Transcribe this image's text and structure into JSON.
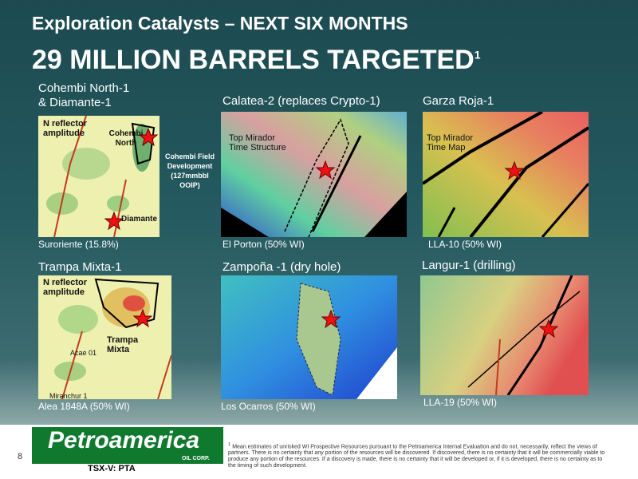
{
  "header": {
    "title": "Exploration Catalysts – NEXT SIX MONTHS",
    "headline": "29 MILLION BARRELS TARGETED",
    "headline_note": "1"
  },
  "panels": [
    {
      "title_lines": [
        "Cohembi North-1",
        "& Diamante-1"
      ],
      "footer": "Suroriente (15.8%)",
      "labels": [
        "N reflector amplitude",
        "Cohembi North",
        "Diamante"
      ],
      "side_note": "Cohembi Field Development (127mmbbl OOIP)"
    },
    {
      "title": "Calatea-2 (replaces Crypto-1)",
      "footer": "El Porton (50% WI)",
      "labels": [
        "Top Mirador Time Structure"
      ]
    },
    {
      "title": "Garza Roja-1",
      "footer": "LLA-10 (50% WI)",
      "labels": [
        "Top Mirador Time Map"
      ]
    },
    {
      "title": "Trampa Mixta-1",
      "footer": "Alea 1848A (50% WI)",
      "labels": [
        "N reflector amplitude",
        "Trampa Mixta",
        "Acae 01",
        "Miranchur 1"
      ]
    },
    {
      "title": "Zampoña -1 (dry hole)",
      "footer": "Los Ocarros (50% WI)"
    },
    {
      "title": "Langur-1 (drilling)",
      "footer": "LLA-19 (50% WI)"
    }
  ],
  "footer": {
    "page": "8",
    "logo": "Petroamerica",
    "logo_sub": "OIL CORP.",
    "ticker": "TSX-V: PTA",
    "note_marker": "1",
    "note": "Mean estimates of unrisked WI Prospective Resources pursuant to the Petroamerica Internal Evaluation and do not, necessarily, reflect the views of partners. There is no certainty that any portion of the resources will be discovered. If discovered, there is no certainty that it will be commercially viable to produce any portion of the resources. If a discovery is made, there is no certainty that it will be developed or, if it is developed, there is no certainty as to the timing of such development."
  }
}
